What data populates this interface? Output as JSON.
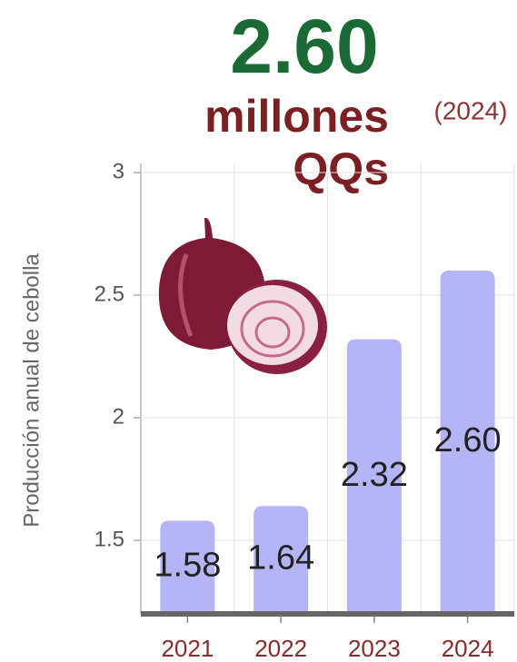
{
  "chart_data": {
    "type": "bar",
    "headline": {
      "value": "2.60",
      "unit_line1": "millones",
      "unit_line2": "QQs",
      "year": "(2024)"
    },
    "y_label": "Producción anual de cebolla",
    "categories": [
      "2021",
      "2022",
      "2023",
      "2024"
    ],
    "values": [
      1.58,
      1.64,
      2.32,
      2.6
    ],
    "value_labels": [
      "1.58",
      "1.64",
      "2.32",
      "2.60"
    ],
    "color": "#b4b4f7",
    "ylim": [
      1.2,
      3
    ],
    "yticks": [
      1.5,
      2,
      2.5,
      3
    ],
    "grid": true
  }
}
